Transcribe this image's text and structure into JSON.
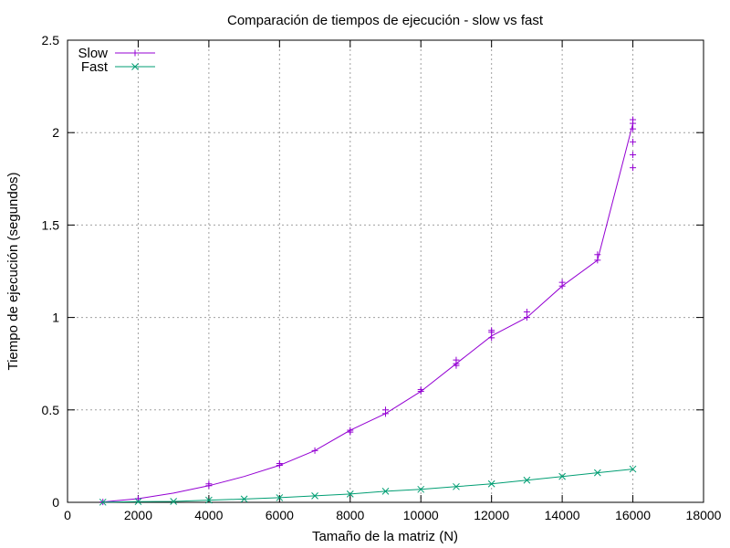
{
  "chart_data": {
    "type": "line",
    "title": "Comparación de tiempos de ejecución - slow vs fast",
    "xlabel": "Tamaño de la matriz (N)",
    "ylabel": "Tiempo de ejecución (segundos)",
    "xlim": [
      0,
      18000
    ],
    "ylim": [
      0,
      2.5
    ],
    "xticks": [
      0,
      2000,
      4000,
      6000,
      8000,
      10000,
      12000,
      14000,
      16000,
      18000
    ],
    "yticks": [
      0,
      0.5,
      1,
      1.5,
      2,
      2.5
    ],
    "xtick_labels": [
      "0",
      "2000",
      "4000",
      "6000",
      "8000",
      "10000",
      "12000",
      "14000",
      "16000",
      "18000"
    ],
    "ytick_labels": [
      "0",
      "0.5",
      "1",
      "1.5",
      "2",
      "2.5"
    ],
    "grid": true,
    "legend_position": "top-left",
    "series": [
      {
        "name": "Slow",
        "color": "#9400d3",
        "marker": "plus",
        "x": [
          1000,
          2000,
          3000,
          4000,
          5000,
          6000,
          7000,
          8000,
          9000,
          10000,
          11000,
          12000,
          13000,
          14000,
          15000,
          16000
        ],
        "y": [
          0.002,
          0.02,
          0.05,
          0.09,
          0.14,
          0.2,
          0.28,
          0.39,
          0.48,
          0.6,
          0.75,
          0.9,
          1.0,
          1.17,
          1.31,
          2.05
        ],
        "scatter_x": [
          1000,
          2000,
          4000,
          4000,
          6000,
          6000,
          7000,
          8000,
          8000,
          9000,
          9000,
          10000,
          10000,
          11000,
          11000,
          11000,
          12000,
          12000,
          12000,
          13000,
          13000,
          14000,
          14000,
          15000,
          15000,
          16000,
          16000,
          16000,
          16000,
          16000,
          16000
        ],
        "scatter_y": [
          0.002,
          0.02,
          0.09,
          0.1,
          0.2,
          0.21,
          0.28,
          0.38,
          0.39,
          0.48,
          0.5,
          0.6,
          0.61,
          0.74,
          0.75,
          0.77,
          0.89,
          0.92,
          0.93,
          1.0,
          1.03,
          1.17,
          1.19,
          1.31,
          1.34,
          1.81,
          1.88,
          1.95,
          2.02,
          2.05,
          2.07
        ]
      },
      {
        "name": "Fast",
        "color": "#009e73",
        "marker": "x",
        "x": [
          1000,
          2000,
          3000,
          4000,
          5000,
          6000,
          7000,
          8000,
          9000,
          10000,
          11000,
          12000,
          13000,
          14000,
          15000,
          16000
        ],
        "y": [
          0.001,
          0.004,
          0.005,
          0.012,
          0.018,
          0.025,
          0.035,
          0.045,
          0.06,
          0.07,
          0.085,
          0.1,
          0.12,
          0.14,
          0.16,
          0.18
        ]
      }
    ]
  }
}
